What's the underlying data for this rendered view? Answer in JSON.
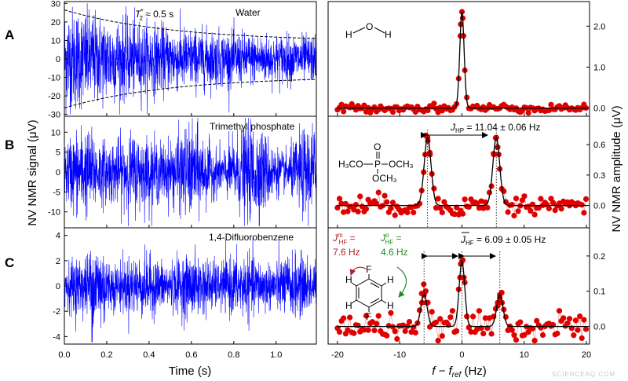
{
  "panel_labels": [
    "A",
    "B",
    "C"
  ],
  "time_axis": {
    "label": "Time (s)",
    "ticks": [
      "0.0",
      "0.2",
      "0.4",
      "0.6",
      "0.8",
      "1.0"
    ]
  },
  "freq_axis": {
    "label_main": "f − f",
    "label_sub": "ref",
    "label_unit": " (Hz)",
    "ticks": [
      "-20",
      "-10",
      "0",
      "10",
      "20"
    ]
  },
  "ylabel_left": "NV NMR signal (μV)",
  "ylabel_right": "NV NMR amplitude (μV)",
  "annotations": {
    "water": "Water",
    "t2_prefix": "T",
    "t2_sub": "2",
    "t2_sup": "*",
    "t2_value": " ≈ 0.5 s",
    "tmp": "Trimethyl phosphate",
    "dfb": "1,4-Difluorobenzene",
    "jhp_j": "J",
    "jhp_sub": "HP",
    "jhp_value": " = 11.04 ± 0.06 Hz",
    "jhf_j": "J",
    "jhf_sub": "HF",
    "jhf_value": " = 6.09 ± 0.05 Hz",
    "jm_j": "J",
    "jm_sub": "HF",
    "jm_sup": "m",
    "jm_eq": " =",
    "jm_value": "7.6 Hz",
    "jo_j": "J",
    "jo_sub": "HF",
    "jo_sup": "o",
    "jo_eq": " =",
    "jo_value": "4.6 Hz",
    "water_h1": "H",
    "water_o": "O",
    "water_h2": "H",
    "p_atom": "P",
    "p_o": "O",
    "och3_left": "H₃CO",
    "och3_right": "OCH₃",
    "och3_bottom": "OCH₃",
    "ring_f_top": "F",
    "ring_f_bottom": "F",
    "ring_h": "H"
  },
  "watermark": "SCIENCEAQ.COM",
  "colors": {
    "signal": "#0000ff",
    "points": "#e00000",
    "fit": "#000000",
    "meta": "#b22222",
    "ortho": "#1e8c1e"
  },
  "chart_data": [
    {
      "type": "line",
      "panel": "A",
      "title": "Water",
      "xlabel": "Time (s)",
      "ylabel": "NV NMR signal (μV)",
      "xlim": [
        0,
        1.19
      ],
      "ylim": [
        -31,
        31
      ],
      "yticks": [
        -30,
        -20,
        -10,
        0,
        10,
        20,
        30
      ],
      "xticks": [
        0,
        0.2,
        0.4,
        0.6,
        0.8,
        1.0
      ],
      "series": [
        {
          "envelope_start": 26.5,
          "envelope_end": 9.5,
          "decay_T2_s": 0.5
        }
      ]
    },
    {
      "type": "line",
      "panel": "B",
      "title": "Trimethyl phosphate",
      "xlabel": "Time (s)",
      "ylabel": "NV NMR signal (μV)",
      "xlim": [
        0,
        1.19
      ],
      "ylim": [
        -14,
        14
      ],
      "yticks": [
        -10,
        -5,
        0,
        5,
        10
      ],
      "xticks": [
        0,
        0.2,
        0.4,
        0.6,
        0.8,
        1.0
      ],
      "series": [
        {
          "envelope": 10
        }
      ]
    },
    {
      "type": "line",
      "panel": "C",
      "title": "1,4-Difluorobenzene",
      "xlabel": "Time (s)",
      "ylabel": "NV NMR signal (μV)",
      "xlim": [
        0,
        1.19
      ],
      "ylim": [
        -4.6,
        4.6
      ],
      "yticks": [
        -4,
        -2,
        0,
        2,
        4
      ],
      "xticks": [
        0,
        0.2,
        0.4,
        0.6,
        0.8,
        1.0
      ],
      "series": [
        {
          "envelope": 2.2
        }
      ]
    },
    {
      "type": "scatter",
      "panel": "A",
      "xlabel": "f − f_ref (Hz)",
      "ylabel": "NV NMR amplitude (μV)",
      "xlim": [
        -21.5,
        20.5
      ],
      "ylim": [
        -0.2,
        2.6
      ],
      "yticks": [
        0.0,
        1.0,
        2.0
      ],
      "xticks": [
        -20,
        -10,
        0,
        10,
        20
      ],
      "peaks": [
        {
          "x": 0,
          "height": 2.35,
          "width": 0.35
        }
      ],
      "noise": 0.05
    },
    {
      "type": "scatter",
      "panel": "B",
      "xlabel": "f − f_ref (Hz)",
      "ylabel": "NV NMR amplitude (μV)",
      "xlim": [
        -21.5,
        20.5
      ],
      "ylim": [
        -0.22,
        0.88
      ],
      "yticks": [
        0.0,
        0.3,
        0.6
      ],
      "xticks": [
        -20,
        -10,
        0,
        10,
        20
      ],
      "peaks": [
        {
          "x": -5.52,
          "height": 0.67,
          "width": 0.55
        },
        {
          "x": 5.52,
          "height": 0.67,
          "width": 0.55
        }
      ],
      "noise": 0.05,
      "J_Hz": 11.04
    },
    {
      "type": "scatter",
      "panel": "C",
      "xlabel": "f − f_ref (Hz)",
      "ylabel": "NV NMR amplitude (μV)",
      "xlim": [
        -21.5,
        20.5
      ],
      "ylim": [
        -0.05,
        0.28
      ],
      "yticks": [
        0.0,
        0.1,
        0.2
      ],
      "xticks": [
        -20,
        -10,
        0,
        10,
        20
      ],
      "peaks": [
        {
          "x": -6.09,
          "height": 0.09,
          "width": 0.5
        },
        {
          "x": 0,
          "height": 0.185,
          "width": 0.45
        },
        {
          "x": 6.09,
          "height": 0.09,
          "width": 0.5
        }
      ],
      "noise": 0.018,
      "J_Hz": 6.09
    }
  ]
}
